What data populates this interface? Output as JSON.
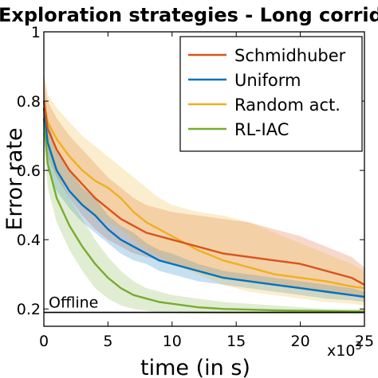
{
  "chart_data": {
    "type": "line",
    "title": "Exploration strategies - Long corridor",
    "xlabel": "time (in s)",
    "ylabel": "Error rate",
    "x_multiplier": "x10",
    "x_multiplier_exp": "3",
    "xlim": [
      0,
      25
    ],
    "ylim": [
      0.15,
      1.0
    ],
    "xticks": [
      0,
      5,
      10,
      15,
      20,
      25
    ],
    "yticks": [
      0.2,
      0.4,
      0.6,
      0.8,
      1
    ],
    "ytick_labels": [
      "0.2",
      "0.4",
      "0.6",
      "0.8",
      "1"
    ],
    "legend_position": "top-right",
    "grid": false,
    "reference_line": {
      "label": "Offline",
      "y": 0.19,
      "color": "#000000"
    },
    "series": [
      {
        "name": "Schmidhuber",
        "color": "#d95319",
        "x": [
          0,
          0.3,
          1,
          2,
          3,
          4,
          5,
          6,
          7,
          8,
          9,
          10,
          12,
          14,
          16,
          18,
          20,
          22,
          24,
          25
        ],
        "values": [
          0.8,
          0.72,
          0.66,
          0.6,
          0.56,
          0.52,
          0.49,
          0.46,
          0.44,
          0.42,
          0.41,
          0.4,
          0.38,
          0.36,
          0.35,
          0.34,
          0.33,
          0.31,
          0.29,
          0.27
        ],
        "upper": [
          0.88,
          0.8,
          0.75,
          0.7,
          0.66,
          0.62,
          0.58,
          0.55,
          0.52,
          0.5,
          0.49,
          0.48,
          0.47,
          0.46,
          0.45,
          0.43,
          0.41,
          0.38,
          0.35,
          0.32
        ],
        "lower": [
          0.72,
          0.64,
          0.58,
          0.52,
          0.47,
          0.43,
          0.4,
          0.38,
          0.36,
          0.35,
          0.34,
          0.33,
          0.31,
          0.29,
          0.28,
          0.27,
          0.26,
          0.25,
          0.24,
          0.23
        ]
      },
      {
        "name": "Uniform",
        "color": "#0072bd",
        "x": [
          0,
          0.3,
          1,
          2,
          3,
          4,
          5,
          6,
          7,
          8,
          9,
          10,
          12,
          14,
          16,
          18,
          20,
          22,
          24,
          25
        ],
        "values": [
          0.78,
          0.68,
          0.6,
          0.54,
          0.5,
          0.47,
          0.43,
          0.4,
          0.38,
          0.36,
          0.34,
          0.33,
          0.31,
          0.29,
          0.28,
          0.27,
          0.26,
          0.25,
          0.24,
          0.235
        ],
        "upper": [
          0.85,
          0.75,
          0.66,
          0.6,
          0.55,
          0.52,
          0.47,
          0.44,
          0.42,
          0.39,
          0.37,
          0.36,
          0.33,
          0.31,
          0.3,
          0.29,
          0.28,
          0.27,
          0.26,
          0.25
        ],
        "lower": [
          0.7,
          0.6,
          0.54,
          0.49,
          0.45,
          0.42,
          0.39,
          0.36,
          0.34,
          0.33,
          0.31,
          0.3,
          0.28,
          0.27,
          0.26,
          0.25,
          0.24,
          0.23,
          0.225,
          0.22
        ]
      },
      {
        "name": "Random act.",
        "color": "#edb120",
        "x": [
          0,
          0.3,
          1,
          2,
          3,
          4,
          5,
          6,
          7,
          8,
          9,
          10,
          12,
          14,
          16,
          18,
          20,
          22,
          24,
          25
        ],
        "values": [
          0.8,
          0.74,
          0.69,
          0.64,
          0.6,
          0.57,
          0.55,
          0.52,
          0.48,
          0.45,
          0.43,
          0.41,
          0.37,
          0.34,
          0.32,
          0.3,
          0.29,
          0.28,
          0.265,
          0.26
        ],
        "upper": [
          0.88,
          0.82,
          0.78,
          0.74,
          0.7,
          0.67,
          0.64,
          0.61,
          0.58,
          0.55,
          0.52,
          0.5,
          0.48,
          0.47,
          0.45,
          0.42,
          0.39,
          0.36,
          0.33,
          0.31
        ],
        "lower": [
          0.72,
          0.66,
          0.6,
          0.55,
          0.5,
          0.47,
          0.45,
          0.43,
          0.4,
          0.37,
          0.35,
          0.33,
          0.3,
          0.27,
          0.25,
          0.24,
          0.23,
          0.22,
          0.215,
          0.21
        ]
      },
      {
        "name": "RL-IAC",
        "color": "#77ac30",
        "x": [
          0,
          0.3,
          1,
          2,
          3,
          4,
          5,
          6,
          7,
          8,
          9,
          10,
          12,
          14,
          16,
          18,
          20,
          22,
          24,
          25
        ],
        "values": [
          0.75,
          0.62,
          0.52,
          0.44,
          0.38,
          0.33,
          0.29,
          0.26,
          0.24,
          0.23,
          0.22,
          0.215,
          0.205,
          0.2,
          0.198,
          0.196,
          0.195,
          0.194,
          0.193,
          0.193
        ],
        "upper": [
          0.82,
          0.7,
          0.6,
          0.52,
          0.46,
          0.4,
          0.35,
          0.31,
          0.28,
          0.26,
          0.25,
          0.24,
          0.23,
          0.22,
          0.215,
          0.21,
          0.205,
          0.2,
          0.2,
          0.2
        ],
        "lower": [
          0.68,
          0.55,
          0.45,
          0.37,
          0.31,
          0.26,
          0.23,
          0.21,
          0.2,
          0.195,
          0.19,
          0.188,
          0.186,
          0.185,
          0.185,
          0.185,
          0.185,
          0.185,
          0.185,
          0.185
        ]
      }
    ]
  }
}
